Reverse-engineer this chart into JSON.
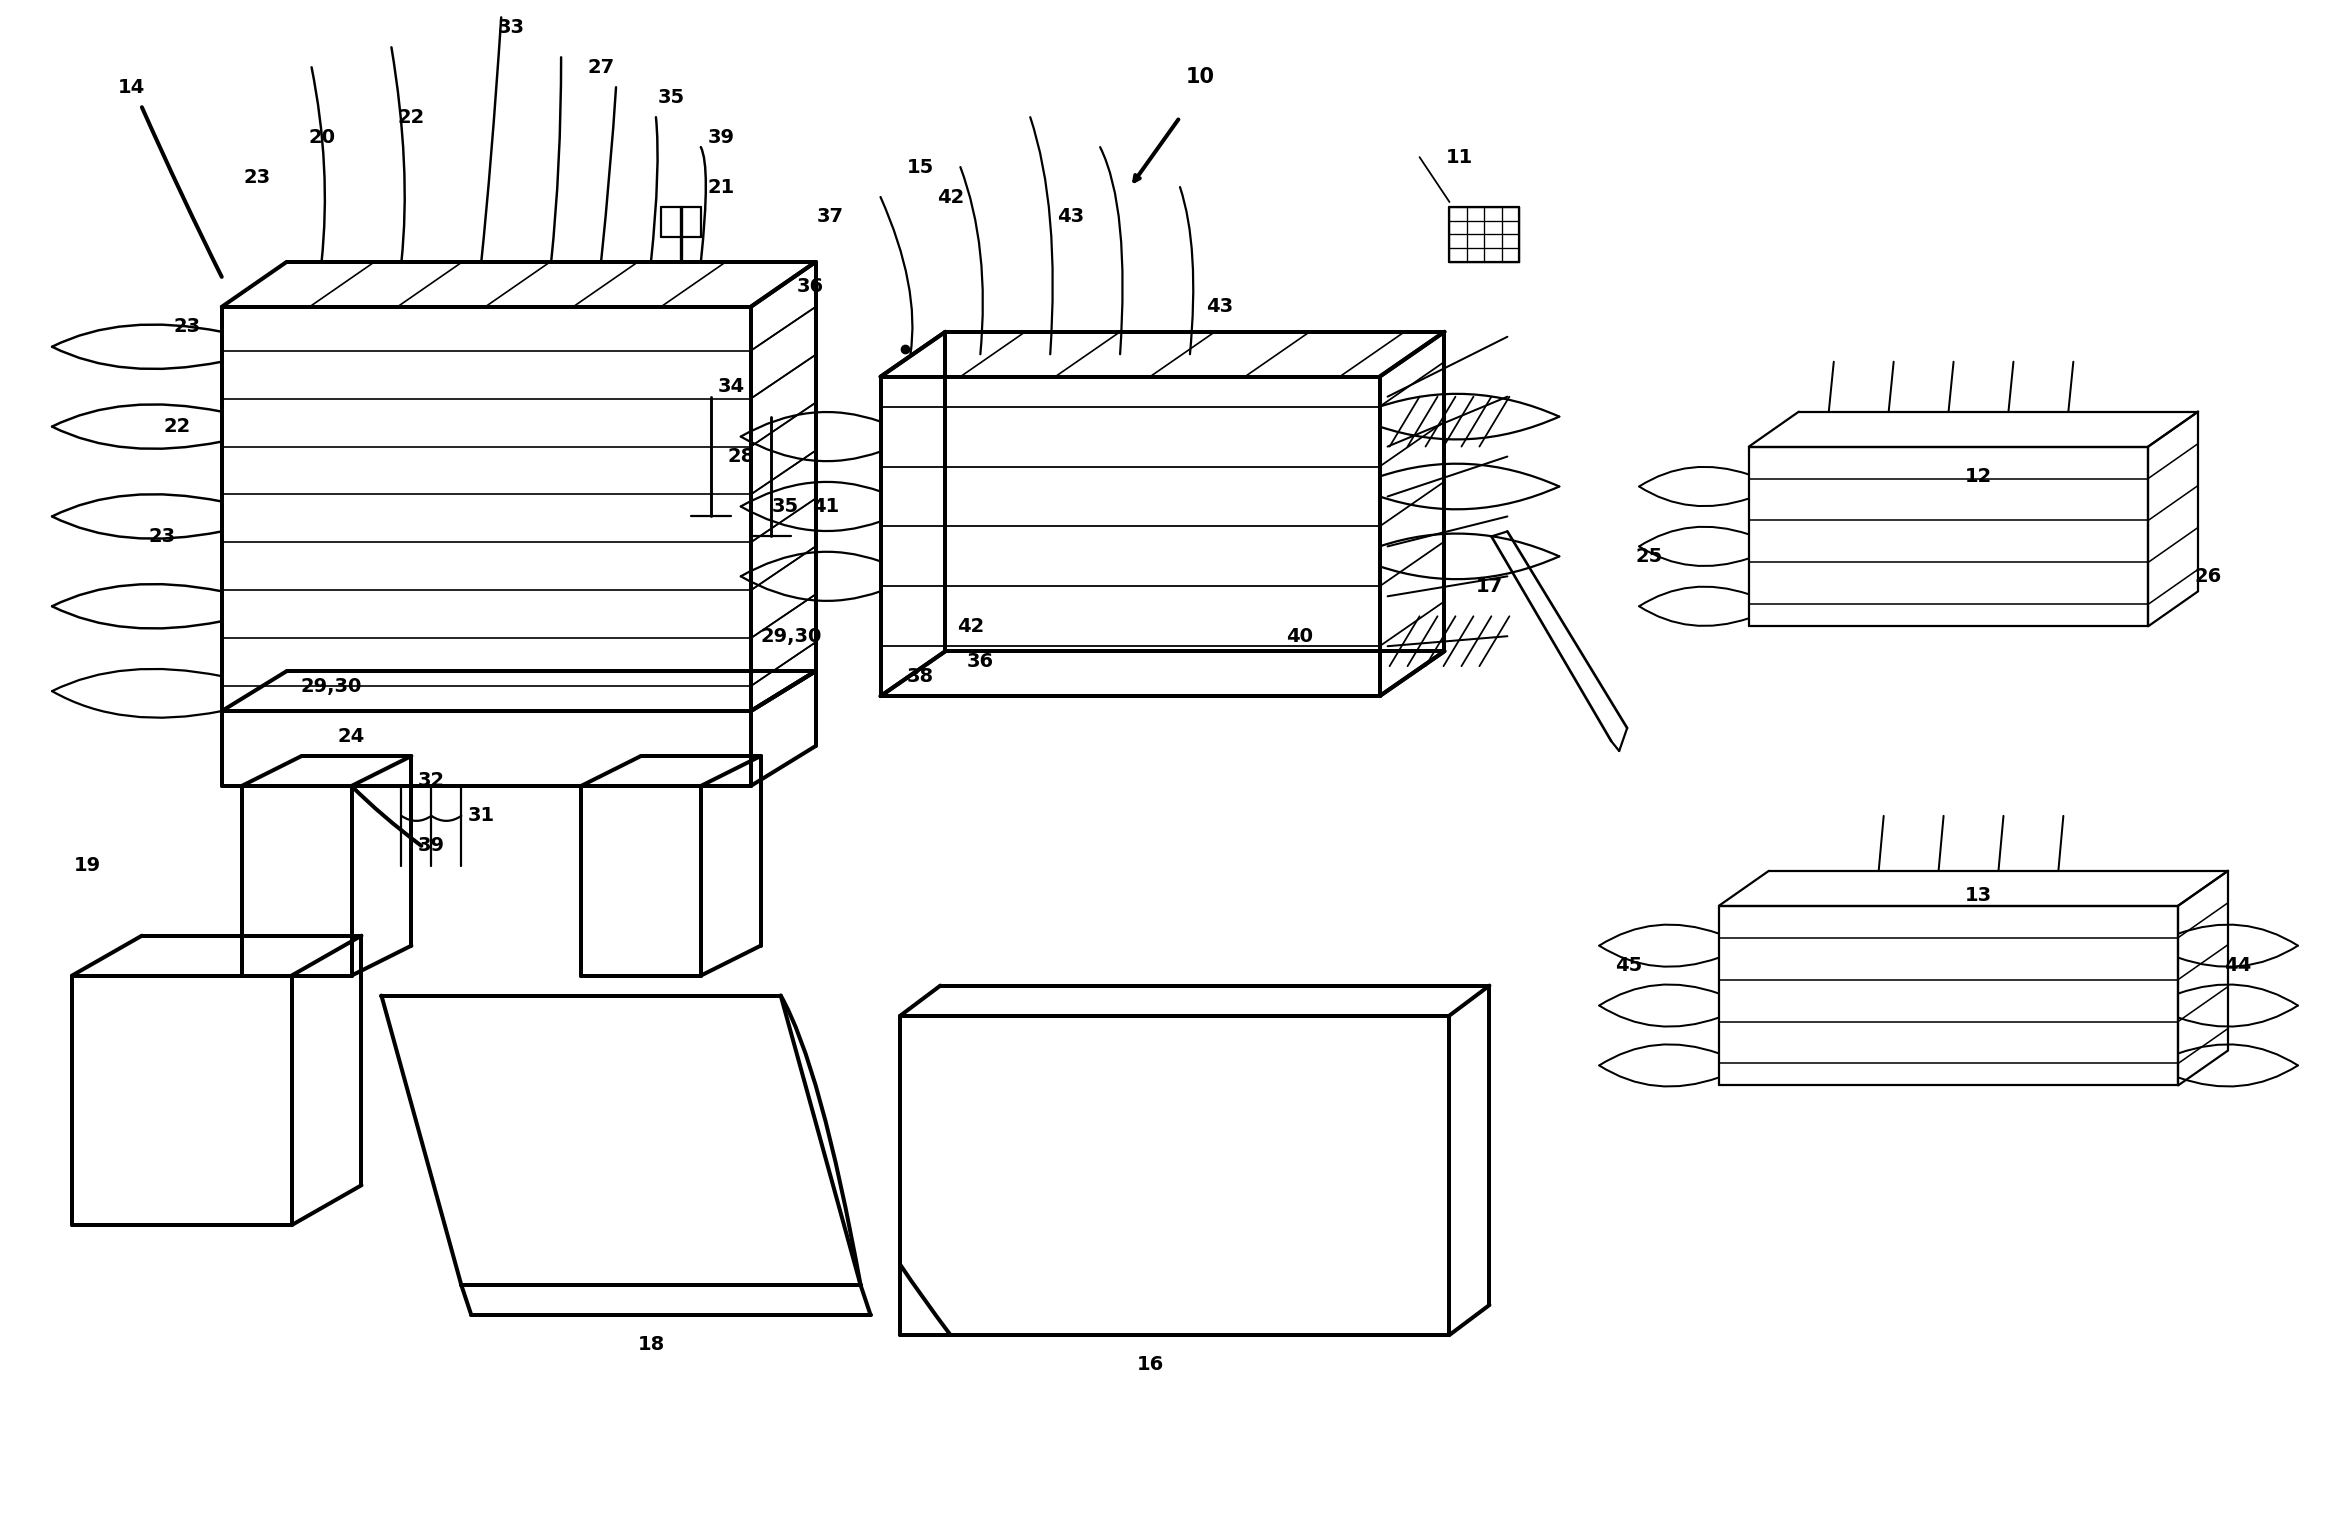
{
  "bg_color": "#ffffff",
  "lw": 1.6,
  "fig_w": 23.42,
  "fig_h": 15.16
}
